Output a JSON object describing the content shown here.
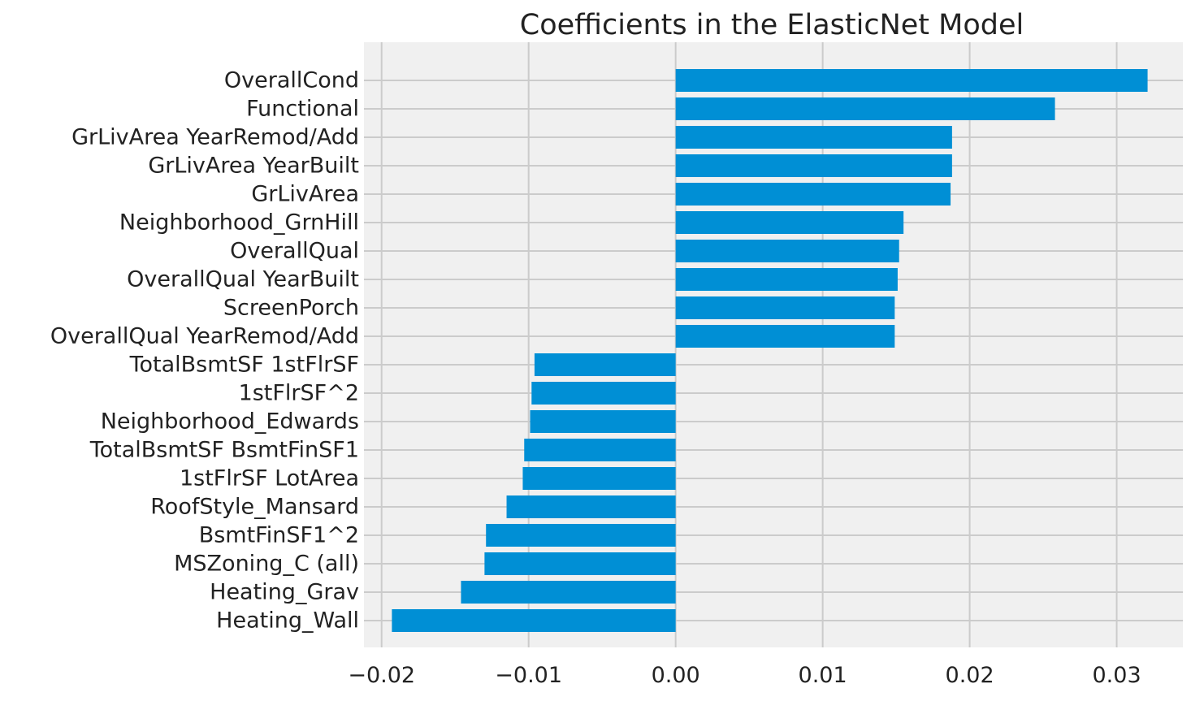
{
  "chart_data": {
    "type": "bar",
    "orientation": "horizontal",
    "title": "Coefficients in the ElasticNet Model",
    "xlabel": "",
    "ylabel": "",
    "xlim": [
      -0.0212,
      0.0345
    ],
    "x_ticks": [
      -0.02,
      -0.01,
      0.0,
      0.01,
      0.02,
      0.03
    ],
    "x_tick_labels": [
      "−0.02",
      "−0.01",
      "0.00",
      "0.01",
      "0.02",
      "0.03"
    ],
    "grid": true,
    "categories": [
      "Heating_Wall",
      "Heating_Grav",
      "MSZoning_C (all)",
      "BsmtFinSF1^2",
      "RoofStyle_Mansard",
      "1stFlrSF LotArea",
      "TotalBsmtSF BsmtFinSF1",
      "Neighborhood_Edwards",
      "1stFlrSF^2",
      "TotalBsmtSF 1stFlrSF",
      "OverallQual YearRemod/Add",
      "ScreenPorch",
      "OverallQual YearBuilt",
      "OverallQual",
      "Neighborhood_GrnHill",
      "GrLivArea",
      "GrLivArea YearBuilt",
      "GrLivArea YearRemod/Add",
      "Functional",
      "OverallCond"
    ],
    "values": [
      -0.0193,
      -0.0146,
      -0.013,
      -0.0129,
      -0.0115,
      -0.0104,
      -0.0103,
      -0.0099,
      -0.0098,
      -0.0096,
      0.0149,
      0.0149,
      0.0151,
      0.0152,
      0.0155,
      0.0187,
      0.0188,
      0.0188,
      0.0258,
      0.0321
    ],
    "colors": {
      "bar": "#008fd5",
      "plot_background": "#f0f0f0",
      "grid": "#cbcbcb",
      "text": "#222222"
    }
  }
}
